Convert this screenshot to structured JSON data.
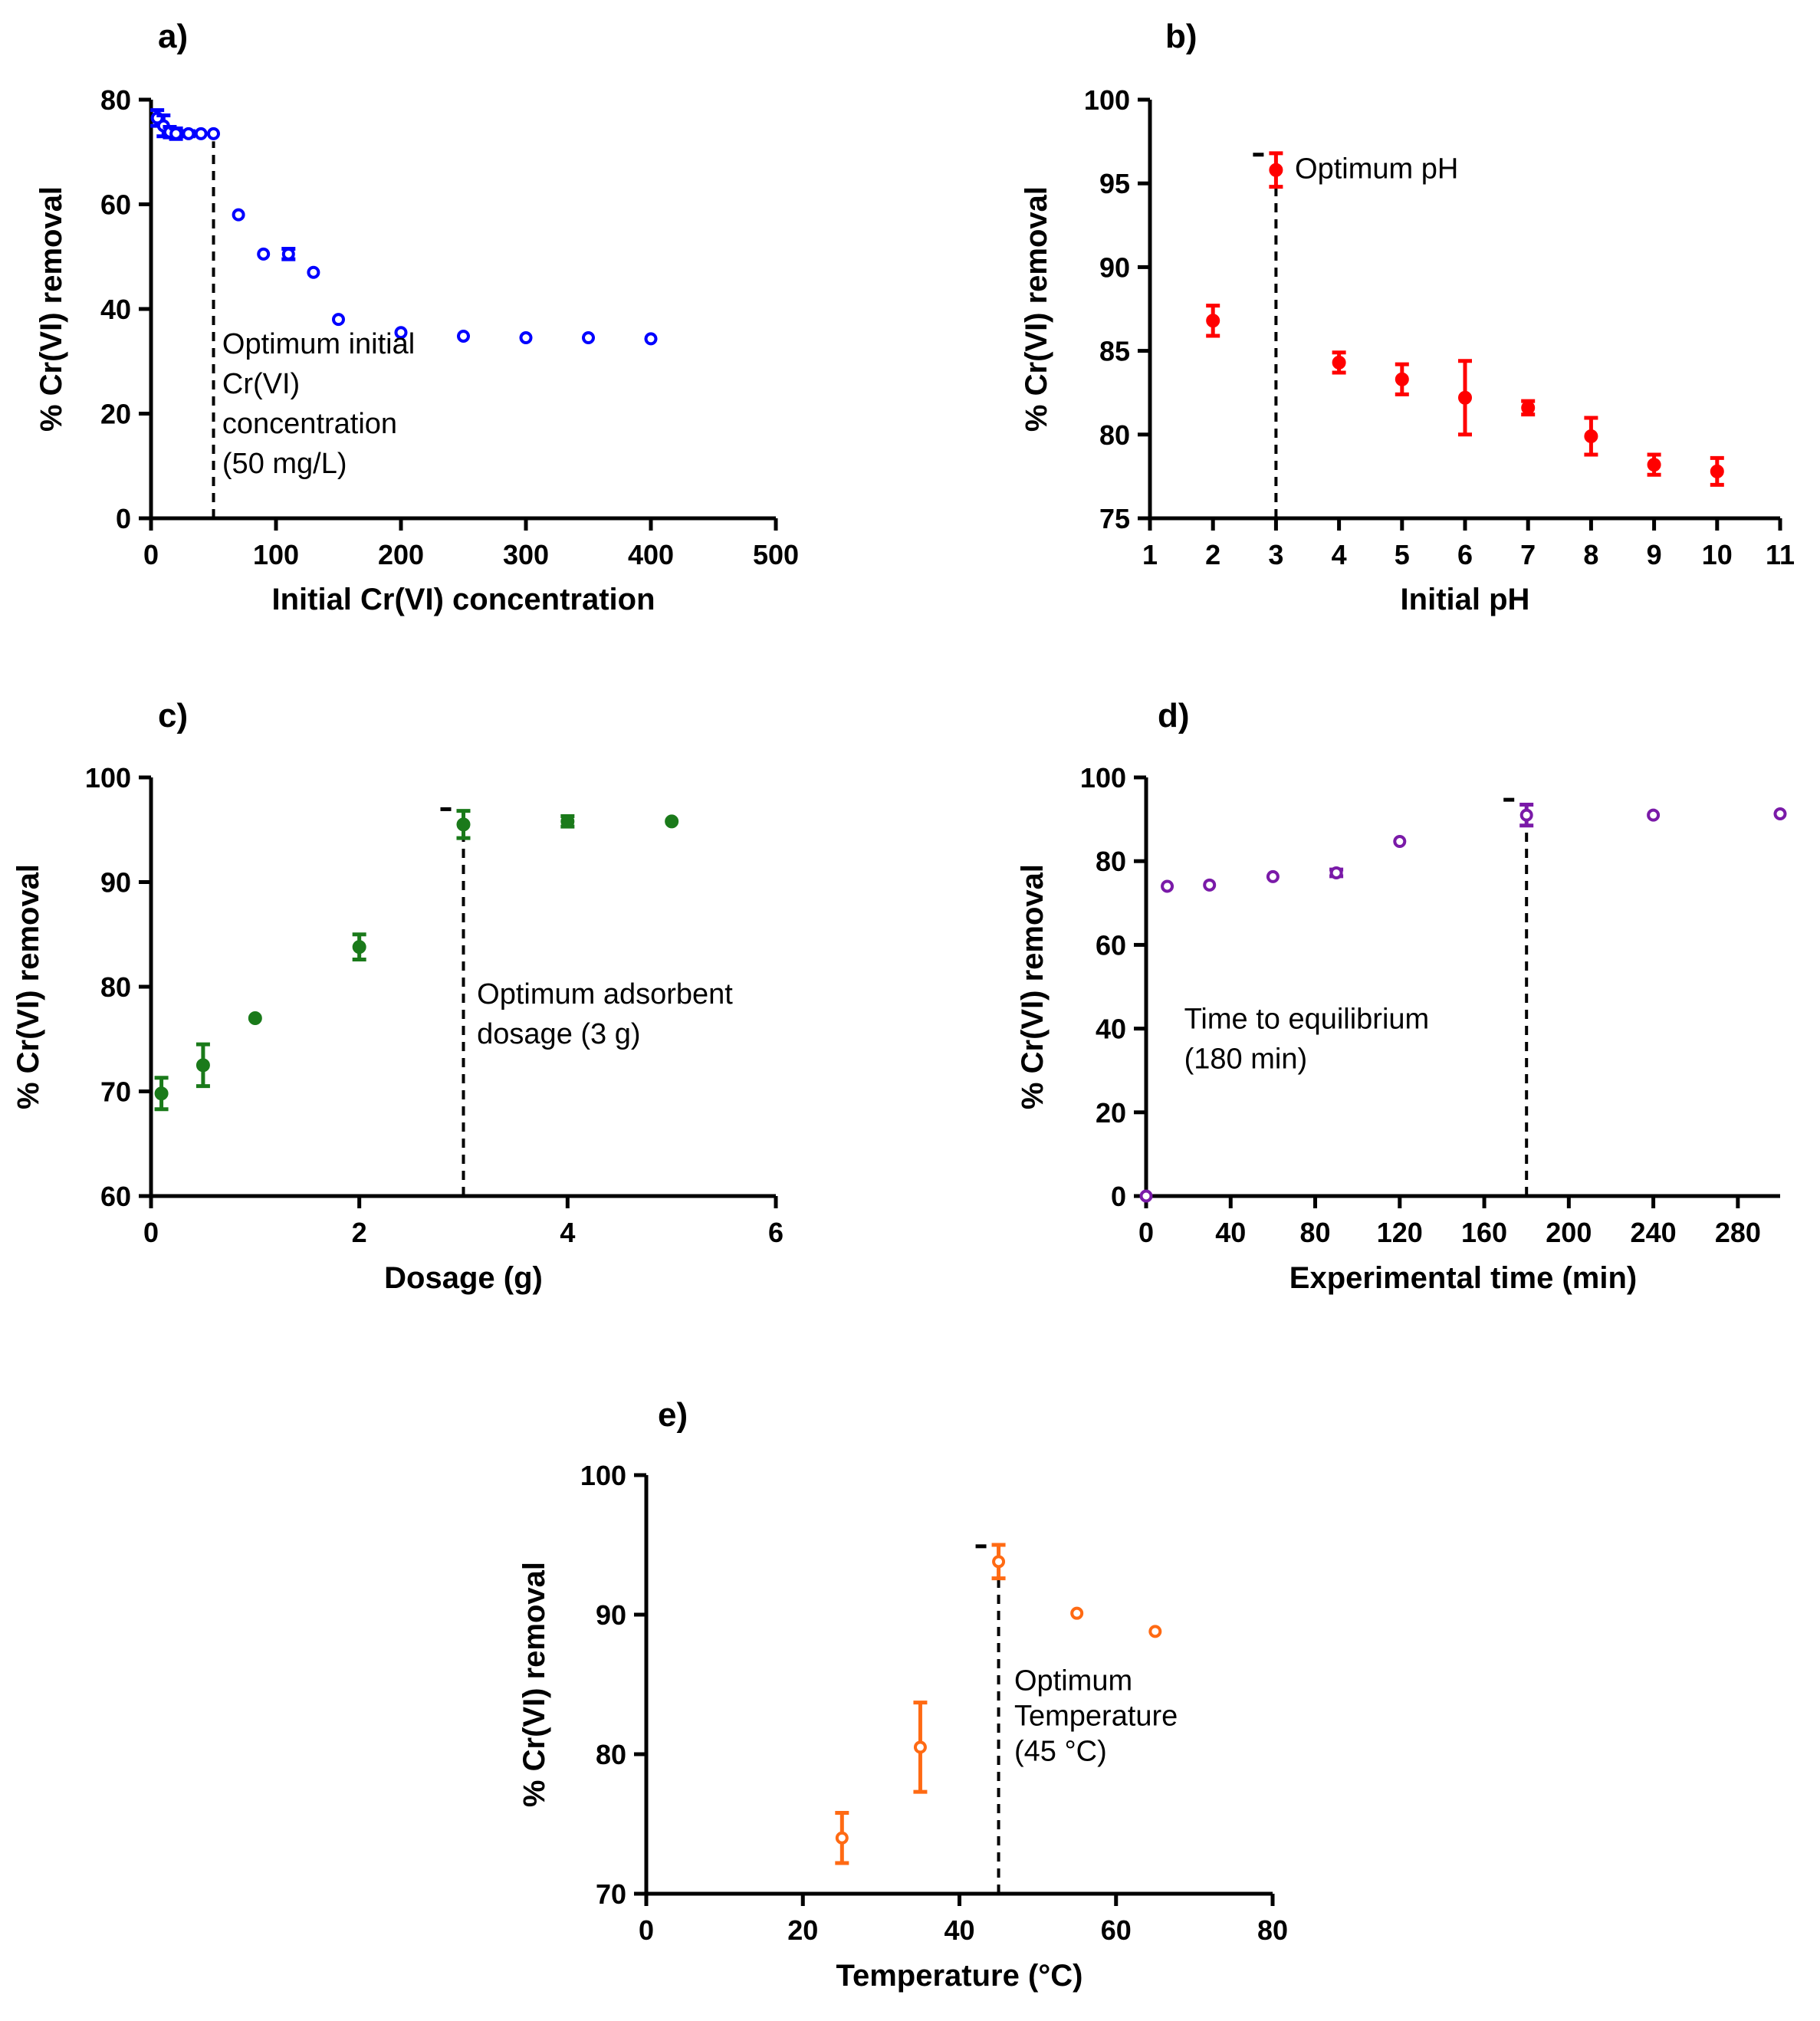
{
  "chart_data": [
    {
      "id": "a",
      "type": "scatter",
      "panel_label": "a)",
      "xlabel": "Initial Cr(VI) concentration",
      "ylabel": "% Cr(VI) removal",
      "xlim": [
        0,
        500
      ],
      "ylim": [
        0,
        80
      ],
      "xticks": [
        0,
        100,
        200,
        300,
        400,
        500
      ],
      "yticks": [
        0,
        20,
        40,
        60,
        80
      ],
      "color": "#0000ff",
      "marker": "open-circle",
      "points": [
        {
          "x": 5,
          "y": 76.5,
          "err": 1.5
        },
        {
          "x": 10,
          "y": 75.0,
          "err": 2.0
        },
        {
          "x": 15,
          "y": 73.8,
          "err": 1.0
        },
        {
          "x": 20,
          "y": 73.5,
          "err": 1.0
        },
        {
          "x": 30,
          "y": 73.5,
          "err": 0.5
        },
        {
          "x": 40,
          "y": 73.5,
          "err": 0
        },
        {
          "x": 50,
          "y": 73.5,
          "err": 0
        },
        {
          "x": 70,
          "y": 58.0,
          "err": 0
        },
        {
          "x": 90,
          "y": 50.5,
          "err": 0
        },
        {
          "x": 110,
          "y": 50.5,
          "err": 1.0
        },
        {
          "x": 130,
          "y": 47.0,
          "err": 0
        },
        {
          "x": 150,
          "y": 38.0,
          "err": 0
        },
        {
          "x": 200,
          "y": 35.5,
          "err": 0
        },
        {
          "x": 250,
          "y": 34.8,
          "err": 0
        },
        {
          "x": 300,
          "y": 34.5,
          "err": 0
        },
        {
          "x": 350,
          "y": 34.5,
          "err": 0
        },
        {
          "x": 400,
          "y": 34.3,
          "err": 0
        }
      ],
      "optimum_x": 50,
      "optimum_tip_y": 73.5,
      "annotation": [
        "Optimum initial",
        "Cr(VI)",
        "concentration",
        "(50 mg/L)"
      ],
      "annotation_at": {
        "x": 57,
        "y": 31.5
      }
    },
    {
      "id": "b",
      "type": "scatter",
      "panel_label": "b)",
      "xlabel": "Initial pH",
      "ylabel": "% Cr(VI) removal",
      "xlim": [
        1,
        11
      ],
      "ylim": [
        75,
        100
      ],
      "xticks": [
        1,
        2,
        3,
        4,
        5,
        6,
        7,
        8,
        9,
        10,
        11
      ],
      "yticks": [
        75,
        80,
        85,
        90,
        95,
        100
      ],
      "color": "#ff0000",
      "marker": "filled-circle",
      "points": [
        {
          "x": 2,
          "y": 86.8,
          "err": 0.9
        },
        {
          "x": 3,
          "y": 95.8,
          "err": 1.0
        },
        {
          "x": 4,
          "y": 84.3,
          "err": 0.6
        },
        {
          "x": 5,
          "y": 83.3,
          "err": 0.9
        },
        {
          "x": 6,
          "y": 82.2,
          "err": 2.2
        },
        {
          "x": 7,
          "y": 81.6,
          "err": 0.4
        },
        {
          "x": 8,
          "y": 79.9,
          "err": 1.1
        },
        {
          "x": 9,
          "y": 78.2,
          "err": 0.6
        },
        {
          "x": 10,
          "y": 77.8,
          "err": 0.8
        }
      ],
      "optimum_x": 3,
      "optimum_tip_y": 95.8,
      "annotation": [
        "Optimum pH"
      ],
      "annotation_at": {
        "x": 3.3,
        "y": 95.3
      }
    },
    {
      "id": "c",
      "type": "scatter",
      "panel_label": "c)",
      "xlabel": "Dosage (g)",
      "ylabel": "% Cr(VI) removal",
      "xlim": [
        0,
        6
      ],
      "ylim": [
        60,
        100
      ],
      "xticks": [
        0,
        2,
        4,
        6
      ],
      "yticks": [
        60,
        70,
        80,
        90,
        100
      ],
      "color": "#1a7a1a",
      "marker": "filled-circle",
      "points": [
        {
          "x": 0.1,
          "y": 69.8,
          "err": 1.5
        },
        {
          "x": 0.5,
          "y": 72.5,
          "err": 2.0
        },
        {
          "x": 1,
          "y": 77.0,
          "err": 0
        },
        {
          "x": 2,
          "y": 83.8,
          "err": 1.2
        },
        {
          "x": 3,
          "y": 95.5,
          "err": 1.3
        },
        {
          "x": 4,
          "y": 95.8,
          "err": 0.5
        },
        {
          "x": 5,
          "y": 95.8,
          "err": 0
        }
      ],
      "optimum_x": 3,
      "optimum_tip_y": 95.5,
      "annotation": [
        "Optimum adsorbent",
        "dosage (3 g)"
      ],
      "annotation_at": {
        "x": 3.13,
        "y": 78.4
      }
    },
    {
      "id": "d",
      "type": "scatter",
      "panel_label": "d)",
      "xlabel": "Experimental time (min)",
      "ylabel": "% Cr(VI) removal",
      "xlim": [
        0,
        300
      ],
      "ylim": [
        0,
        100
      ],
      "xticks": [
        0,
        40,
        80,
        120,
        160,
        200,
        240,
        280
      ],
      "yticks": [
        0,
        20,
        40,
        60,
        80,
        100
      ],
      "color": "#7a1aa8",
      "marker": "open-circle",
      "points": [
        {
          "x": 0,
          "y": 0,
          "err": 0
        },
        {
          "x": 10,
          "y": 74.0,
          "err": 0
        },
        {
          "x": 30,
          "y": 74.3,
          "err": 0
        },
        {
          "x": 60,
          "y": 76.3,
          "err": 0
        },
        {
          "x": 90,
          "y": 77.2,
          "err": 0.8
        },
        {
          "x": 120,
          "y": 84.7,
          "err": 0
        },
        {
          "x": 180,
          "y": 91.0,
          "err": 2.5
        },
        {
          "x": 240,
          "y": 91.0,
          "err": 0
        },
        {
          "x": 300,
          "y": 91.3,
          "err": 0
        }
      ],
      "optimum_x": 180,
      "optimum_tip_y": 91.0,
      "annotation": [
        "Time to equilibrium",
        "(180 min)"
      ],
      "annotation_at": {
        "x": 18,
        "y": 40
      }
    },
    {
      "id": "e",
      "type": "scatter",
      "panel_label": "e)",
      "xlabel": "Temperature (°C)",
      "ylabel": "% Cr(VI) removal",
      "xlim": [
        0,
        80
      ],
      "ylim": [
        70,
        100
      ],
      "xticks": [
        0,
        20,
        40,
        60,
        80
      ],
      "yticks": [
        70,
        80,
        90,
        100
      ],
      "color": "#ff6a13",
      "marker": "open-circle",
      "points": [
        {
          "x": 25,
          "y": 74.0,
          "err": 1.8
        },
        {
          "x": 35,
          "y": 80.5,
          "err": 3.2
        },
        {
          "x": 45,
          "y": 93.8,
          "err": 1.2
        },
        {
          "x": 55,
          "y": 90.1,
          "err": 0
        },
        {
          "x": 65,
          "y": 88.8,
          "err": 0
        }
      ],
      "optimum_x": 45,
      "optimum_tip_y": 93.8,
      "annotation": [
        "Optimum",
        "Temperature",
        "(45 °C)"
      ],
      "annotation_at": {
        "x": 47,
        "y": 84.6
      }
    }
  ]
}
